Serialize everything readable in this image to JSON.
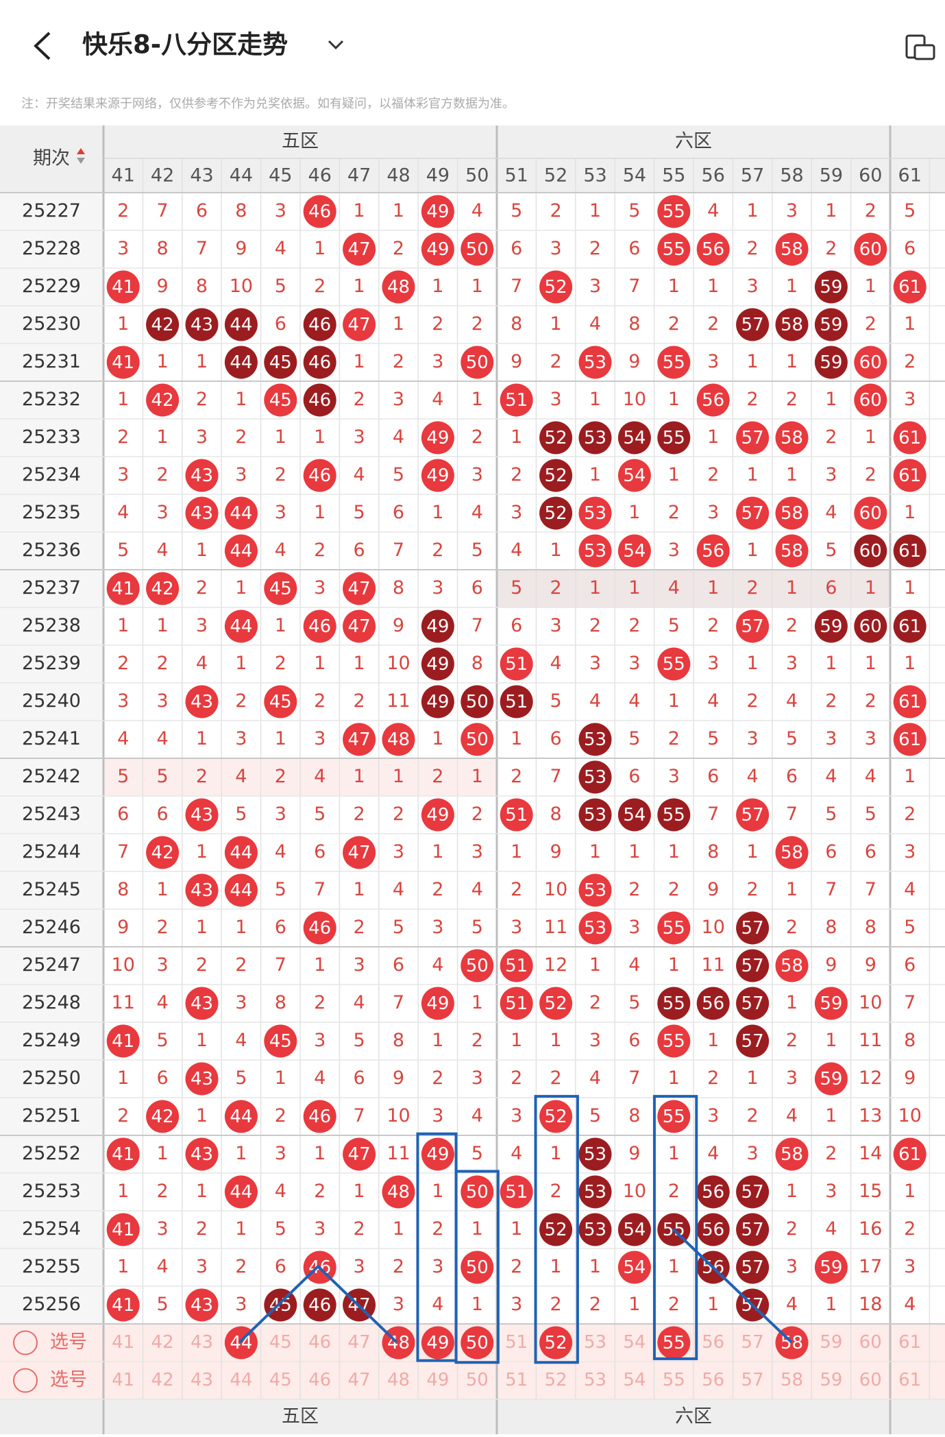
{
  "header": {
    "title": "快乐8-八分区走势",
    "note": "注：开奖结果来源于网络，仅供参考不作为兑奖依据。如有疑问，以福体彩官方数据为准。"
  },
  "table": {
    "issue_label": "期次",
    "zones": [
      "五区",
      "六区"
    ],
    "columns": [
      41,
      42,
      43,
      44,
      45,
      46,
      47,
      48,
      49,
      50,
      51,
      52,
      53,
      54,
      55,
      56,
      57,
      58,
      59,
      60,
      61
    ],
    "rows": [
      {
        "issue": "25227",
        "values": [
          2,
          7,
          6,
          8,
          3,
          46,
          1,
          1,
          49,
          4,
          5,
          2,
          1,
          5,
          55,
          4,
          1,
          3,
          1,
          2,
          5
        ],
        "dark": []
      },
      {
        "issue": "25228",
        "values": [
          3,
          8,
          7,
          9,
          4,
          1,
          47,
          2,
          49,
          50,
          6,
          3,
          2,
          6,
          55,
          56,
          2,
          58,
          2,
          60,
          6
        ],
        "dark": []
      },
      {
        "issue": "25229",
        "values": [
          41,
          9,
          8,
          10,
          5,
          2,
          1,
          48,
          1,
          1,
          7,
          52,
          3,
          7,
          1,
          1,
          3,
          1,
          59,
          1,
          61
        ],
        "dark": [
          59
        ]
      },
      {
        "issue": "25230",
        "values": [
          1,
          42,
          43,
          44,
          6,
          46,
          47,
          1,
          2,
          2,
          8,
          1,
          4,
          8,
          2,
          2,
          57,
          58,
          59,
          2,
          1
        ],
        "dark": [
          42,
          43,
          44,
          46,
          57,
          58,
          59
        ]
      },
      {
        "issue": "25231",
        "values": [
          41,
          1,
          1,
          44,
          45,
          46,
          1,
          2,
          3,
          50,
          9,
          2,
          53,
          9,
          55,
          3,
          1,
          1,
          59,
          60,
          2
        ],
        "dark": [
          44,
          45,
          46,
          59
        ]
      },
      {
        "issue": "25232",
        "values": [
          1,
          42,
          2,
          1,
          45,
          46,
          2,
          3,
          4,
          1,
          51,
          3,
          1,
          10,
          1,
          56,
          2,
          2,
          1,
          60,
          3
        ],
        "dark": [
          46
        ]
      },
      {
        "issue": "25233",
        "values": [
          2,
          1,
          3,
          2,
          1,
          1,
          3,
          4,
          49,
          2,
          1,
          52,
          53,
          54,
          55,
          1,
          57,
          58,
          2,
          1,
          61
        ],
        "dark": [
          52,
          53,
          54,
          55
        ]
      },
      {
        "issue": "25234",
        "values": [
          3,
          2,
          43,
          3,
          2,
          46,
          4,
          5,
          49,
          3,
          2,
          52,
          1,
          54,
          1,
          2,
          1,
          1,
          3,
          2,
          61
        ],
        "dark": [
          52
        ]
      },
      {
        "issue": "25235",
        "values": [
          4,
          3,
          43,
          44,
          3,
          1,
          5,
          6,
          1,
          4,
          3,
          52,
          53,
          1,
          2,
          3,
          57,
          58,
          4,
          60,
          1
        ],
        "dark": [
          52
        ]
      },
      {
        "issue": "25236",
        "values": [
          5,
          4,
          1,
          44,
          4,
          2,
          6,
          7,
          2,
          5,
          4,
          1,
          53,
          54,
          3,
          56,
          1,
          58,
          5,
          60,
          61
        ],
        "dark": [
          60,
          61
        ]
      },
      {
        "issue": "25237",
        "values": [
          41,
          42,
          2,
          1,
          45,
          3,
          47,
          8,
          3,
          6,
          5,
          2,
          1,
          1,
          4,
          1,
          2,
          1,
          6,
          1,
          1
        ],
        "dark": []
      },
      {
        "issue": "25238",
        "values": [
          1,
          1,
          3,
          44,
          1,
          46,
          47,
          9,
          49,
          7,
          6,
          3,
          2,
          2,
          5,
          2,
          57,
          2,
          59,
          60,
          61
        ],
        "dark": [
          49,
          59,
          60,
          61
        ]
      },
      {
        "issue": "25239",
        "values": [
          2,
          2,
          4,
          1,
          2,
          1,
          1,
          10,
          49,
          8,
          51,
          4,
          3,
          3,
          55,
          3,
          1,
          3,
          1,
          1,
          1
        ],
        "dark": [
          49
        ]
      },
      {
        "issue": "25240",
        "values": [
          3,
          3,
          43,
          2,
          45,
          2,
          2,
          11,
          49,
          50,
          51,
          5,
          4,
          4,
          1,
          4,
          2,
          4,
          2,
          2,
          61
        ],
        "dark": [
          49,
          50,
          51
        ]
      },
      {
        "issue": "25241",
        "values": [
          4,
          4,
          1,
          3,
          1,
          3,
          47,
          48,
          1,
          50,
          1,
          6,
          53,
          5,
          2,
          5,
          3,
          5,
          3,
          3,
          61
        ],
        "dark": [
          53
        ]
      },
      {
        "issue": "25242",
        "values": [
          5,
          5,
          2,
          4,
          2,
          4,
          1,
          1,
          2,
          1,
          2,
          7,
          53,
          6,
          3,
          6,
          4,
          6,
          4,
          4,
          1
        ],
        "dark": [
          53
        ]
      },
      {
        "issue": "25243",
        "values": [
          6,
          6,
          43,
          5,
          3,
          5,
          2,
          2,
          49,
          2,
          51,
          8,
          53,
          54,
          55,
          7,
          57,
          7,
          5,
          5,
          2
        ],
        "dark": [
          53,
          54,
          55
        ]
      },
      {
        "issue": "25244",
        "values": [
          7,
          42,
          1,
          44,
          4,
          6,
          47,
          3,
          1,
          3,
          1,
          9,
          1,
          1,
          1,
          8,
          1,
          58,
          6,
          6,
          3
        ],
        "dark": []
      },
      {
        "issue": "25245",
        "values": [
          8,
          1,
          43,
          44,
          5,
          7,
          1,
          4,
          2,
          4,
          2,
          10,
          53,
          2,
          2,
          9,
          2,
          1,
          7,
          7,
          4
        ],
        "dark": []
      },
      {
        "issue": "25246",
        "values": [
          9,
          2,
          1,
          1,
          6,
          46,
          2,
          5,
          3,
          5,
          3,
          11,
          53,
          3,
          55,
          10,
          57,
          2,
          8,
          8,
          5
        ],
        "dark": [
          57
        ]
      },
      {
        "issue": "25247",
        "values": [
          10,
          3,
          2,
          2,
          7,
          1,
          3,
          6,
          4,
          50,
          51,
          12,
          1,
          4,
          1,
          11,
          57,
          58,
          9,
          9,
          6
        ],
        "dark": [
          57
        ]
      },
      {
        "issue": "25248",
        "values": [
          11,
          4,
          43,
          3,
          8,
          2,
          4,
          7,
          49,
          1,
          51,
          52,
          2,
          5,
          55,
          56,
          57,
          1,
          59,
          10,
          7
        ],
        "dark": [
          55,
          56,
          57
        ]
      },
      {
        "issue": "25249",
        "values": [
          41,
          5,
          1,
          4,
          45,
          3,
          5,
          8,
          1,
          2,
          1,
          1,
          3,
          6,
          55,
          1,
          57,
          2,
          1,
          11,
          8
        ],
        "dark": [
          57
        ]
      },
      {
        "issue": "25250",
        "values": [
          1,
          6,
          43,
          5,
          1,
          4,
          6,
          9,
          2,
          3,
          2,
          2,
          4,
          7,
          1,
          2,
          1,
          3,
          59,
          12,
          9
        ],
        "dark": []
      },
      {
        "issue": "25251",
        "values": [
          2,
          42,
          1,
          44,
          2,
          46,
          7,
          10,
          3,
          4,
          3,
          52,
          5,
          8,
          55,
          3,
          2,
          4,
          1,
          13,
          10
        ],
        "dark": []
      },
      {
        "issue": "25252",
        "values": [
          41,
          1,
          43,
          1,
          3,
          1,
          47,
          11,
          49,
          5,
          4,
          1,
          53,
          9,
          1,
          4,
          3,
          58,
          2,
          14,
          61
        ],
        "dark": [
          53
        ]
      },
      {
        "issue": "25253",
        "values": [
          1,
          2,
          1,
          44,
          4,
          2,
          1,
          48,
          1,
          50,
          51,
          2,
          53,
          10,
          2,
          56,
          57,
          1,
          3,
          15,
          1
        ],
        "dark": [
          53,
          56,
          57
        ]
      },
      {
        "issue": "25254",
        "values": [
          41,
          3,
          2,
          1,
          5,
          3,
          2,
          1,
          2,
          1,
          1,
          52,
          53,
          54,
          55,
          56,
          57,
          2,
          4,
          16,
          2
        ],
        "dark": [
          52,
          53,
          54,
          55,
          56,
          57
        ]
      },
      {
        "issue": "25255",
        "values": [
          1,
          4,
          3,
          2,
          6,
          46,
          3,
          2,
          3,
          50,
          2,
          1,
          1,
          54,
          1,
          56,
          57,
          3,
          59,
          17,
          3
        ],
        "dark": [
          56,
          57
        ]
      },
      {
        "issue": "25256",
        "values": [
          41,
          5,
          43,
          3,
          45,
          46,
          47,
          3,
          4,
          1,
          3,
          2,
          2,
          1,
          2,
          1,
          57,
          4,
          1,
          18,
          4
        ],
        "dark": [
          45,
          46,
          47,
          57
        ]
      }
    ],
    "select_rows": [
      {
        "label": "选号",
        "selected": [
          44,
          48,
          49,
          50,
          52,
          55,
          58
        ]
      },
      {
        "label": "选号",
        "selected": []
      }
    ]
  }
}
